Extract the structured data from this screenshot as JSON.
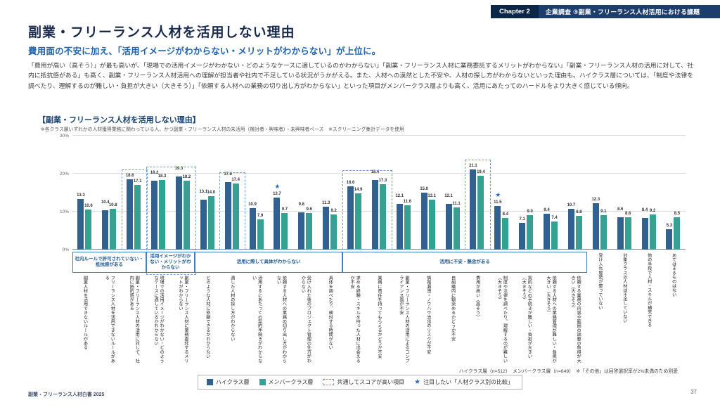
{
  "header": {
    "chapter_label": "Chapter 2",
    "chapter_title": "企業調査 ③副業・フリーランス人材活用における課題"
  },
  "page": {
    "title": "副業・フリーランス人材を活用しない理由",
    "subtitle": "費用面の不安に加え、「活用イメージがわからない・メリットがわからない」が上位に。",
    "body": "「費用が高い（高そう）」が最も高いが、「現場での活用イメージがわかない・どのようなケースに適しているのかわからない」「副業・フリーランス人材に業務委託するメリットがわからない」「副業・フリーランス人材の活用に対して、社内に抵抗感がある」も高く、副業・フリーランス人材活用への理解が担当者や社内で不足している状況がうかがえる。また、人材への漠然とした不安や、人材の探し方がわからないといった理由も。ハイクラス層については、「制度や法律を調べたり、理解するのが難しい・負担が大きい（大きそう）」「依頼する人材への業務の切り出し方がわからない」といった項目がメンバークラス層よりも高く、活用にあたってのハードルをより大きく感じている傾向。",
    "footer_left": "副業・フリーランス人材白書 2025",
    "page_number": "37"
  },
  "chart": {
    "title": "【副業・フリーランス人材を活用しない理由】",
    "note": "※各クラス層いずれかの人材獲得業務に関わっている人、かつ副業・フリーランス人材の未活用（検討者・興味者）・未興味者ベース　※スクリーニング集計データを使用",
    "sample_note": "ハイクラス層（n=512）　メンバークラス層（n=649）　※「その他」は回答選択率が2%未満のため割愛",
    "legend": [
      {
        "label": "ハイクラス層",
        "type": "swatch",
        "color": "#31618f"
      },
      {
        "label": "メンバークラス層",
        "type": "swatch",
        "color": "#35a193"
      },
      {
        "label": "共通してスコアが高い項目",
        "type": "dashed",
        "color": "#6f9fd8"
      },
      {
        "label": "注目したい「人材クラス別の比較」",
        "type": "star",
        "color": "#2f6db5"
      }
    ]
  },
  "chart_data": {
    "type": "bar",
    "title": "副業・フリーランス人材を活用しない理由",
    "ylabel": "%",
    "ylim": [
      0,
      30
    ],
    "yticks": [
      0,
      10,
      20,
      30
    ],
    "categories": [
      "副業人材を活用できないルールがある",
      "フリーランス人材を活用できないルールがある",
      "副業・フリーランス人材の活用に対して、社内に抵抗感がある",
      "現場での活用イメージがわかない・どのようなケースに適しているかわからない",
      "副業・フリーランス人材に業務委託するメリットがわからない",
      "どのような人材に依頼できるかわからない",
      "適した人材の探し方がわからない",
      "活用するにあたっての契約手続きがわからない",
      "依頼する人材への業務の切り出し方がわからない",
      "受け入れた後のプロジェクト管理の仕方がわからない",
      "具体を調べたり、検討する時間がない",
      "求める経験・スキルを持った人材に出会えるか不安",
      "業務に責任を持ってもらえるかどうか不安",
      "副業・フリーランス人材の活用によるコンプライアンス面が不安",
      "情報漏洩・ノウハウ流出のリスクが不安",
      "自組織内に馴染めるかどうか不安",
      "費用が高い（高そう）",
      "制度や法律を調べたり、理解するのが難しい（大きそう）",
      "契約などの手続きが難しい・負担が大きい（大きそう）",
      "依頼する人材への業務管理が難しい・負担が大きい（大きそう）",
      "依頼する業務の内容や範囲の調整の負担が大きい（大きそう）",
      "受け入れ態勢が整っていない",
      "対象クラスの人材は不足していない",
      "他の手段で人材・スキルが補充できる",
      "あてはまるものはない"
    ],
    "series": [
      {
        "name": "ハイクラス層",
        "color": "#31618f",
        "values": [
          13.3,
          10.4,
          18.6,
          18.2,
          19.3,
          13.1,
          17.8,
          10.9,
          13.7,
          9.8,
          11.3,
          16.6,
          18.4,
          12.1,
          15.0,
          12.1,
          21.1,
          11.5,
          7.1,
          9.4,
          10.7,
          12.3,
          8.6,
          8.4,
          5.3
        ]
      },
      {
        "name": "メンバークラス層",
        "color": "#35a193",
        "values": [
          10.6,
          10.8,
          17.1,
          18.3,
          18.2,
          14.0,
          17.4,
          7.9,
          9.7,
          9.6,
          9.2,
          14.9,
          17.3,
          11.6,
          13.1,
          11.1,
          19.4,
          8.4,
          9.0,
          7.4,
          8.8,
          9.1,
          8.6,
          9.2,
          8.5
        ]
      }
    ],
    "groups": [
      {
        "label": "社内ルールで許可されていない・抵抗感がある",
        "from": 1,
        "to": 3
      },
      {
        "label": "活用イメージがわかない・メリットがわからない",
        "from": 4,
        "to": 5
      },
      {
        "label": "活用に際して具体がわからない",
        "from": 6,
        "to": 11
      },
      {
        "label": "活用に不安・懸念がある",
        "from": 12,
        "to": 21
      }
    ],
    "stars": [
      9,
      18
    ],
    "highlights": [
      {
        "from": 3,
        "to": 3,
        "below": false
      },
      {
        "from": 4,
        "to": 5,
        "below": true
      },
      {
        "from": 7,
        "to": 7,
        "below": false
      },
      {
        "from": 12,
        "to": 13,
        "below": false
      },
      {
        "from": 17,
        "to": 17,
        "below": false
      }
    ],
    "legend_position": "bottom",
    "grid": true
  }
}
